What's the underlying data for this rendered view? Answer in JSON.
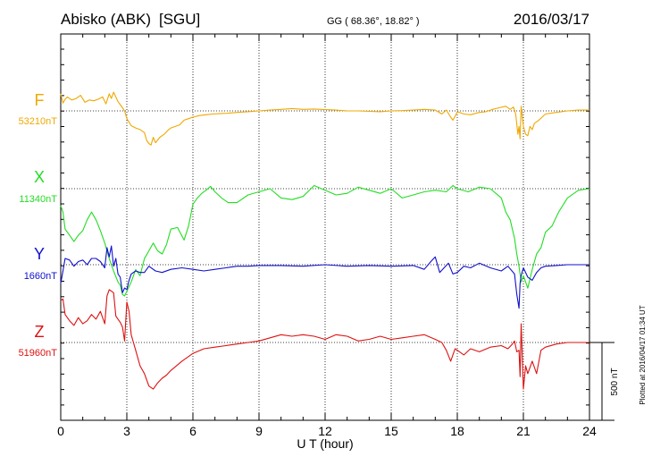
{
  "header": {
    "station": "Abisko (ABK)",
    "institute": "[SGU]",
    "coords": "GG ( 68.36°,  18.82° )",
    "date": "2016/03/17"
  },
  "x_axis_title": "U T (hour)",
  "scale_label": "500 nT",
  "plotted_note": "Plotted at 2016/04/17 01:34 UT",
  "chart_data": {
    "type": "line",
    "title": "Abisko (ABK)  [SGU]",
    "xlabel": "U T (hour)",
    "ylabel": "",
    "xlim": [
      0,
      24
    ],
    "xticks": [
      0,
      3,
      6,
      9,
      12,
      15,
      18,
      21,
      24
    ],
    "grid": true,
    "scale_bar_nT": 500,
    "series": [
      {
        "name": "F",
        "baseline": "53210nT",
        "color": "#f0a800",
        "x": [
          0,
          0.1,
          0.2,
          0.3,
          0.5,
          0.7,
          0.9,
          1.1,
          1.3,
          1.5,
          1.7,
          1.9,
          2.05,
          2.2,
          2.3,
          2.4,
          2.5,
          2.6,
          2.7,
          2.8,
          2.9,
          3.0,
          3.2,
          3.4,
          3.6,
          3.8,
          3.9,
          4.0,
          4.1,
          4.2,
          4.3,
          4.5,
          4.7,
          4.9,
          5.0,
          5.2,
          5.4,
          5.6,
          5.8,
          6.0,
          6.3,
          6.6,
          6.9,
          7.2,
          7.6,
          8.0,
          8.5,
          9.0,
          9.5,
          10.0,
          10.5,
          11.0,
          11.5,
          12.0,
          12.5,
          13.0,
          13.5,
          14.0,
          14.5,
          15.0,
          15.5,
          16.0,
          16.5,
          17.0,
          17.3,
          17.5,
          17.7,
          17.8,
          17.9,
          18.0,
          18.3,
          18.6,
          19.0,
          19.3,
          19.6,
          19.9,
          20.2,
          20.4,
          20.55,
          20.65,
          20.75,
          20.8,
          20.85,
          20.9,
          21.0,
          21.1,
          21.2,
          21.3,
          21.4,
          21.5,
          21.7,
          22.0,
          22.5,
          23.0,
          23.5,
          24.0
        ],
        "values": [
          110,
          50,
          75,
          90,
          70,
          80,
          100,
          55,
          70,
          65,
          75,
          90,
          45,
          110,
          80,
          120,
          90,
          60,
          40,
          20,
          0,
          -50,
          -95,
          -110,
          -120,
          -140,
          -190,
          -210,
          -220,
          -170,
          -205,
          -170,
          -150,
          -120,
          -110,
          -100,
          -90,
          -60,
          -50,
          -40,
          -30,
          -25,
          -20,
          -18,
          -15,
          -10,
          -5,
          0,
          5,
          10,
          15,
          10,
          12,
          8,
          5,
          0,
          0,
          -3,
          -5,
          0,
          2,
          5,
          10,
          5,
          -20,
          5,
          -40,
          -60,
          -35,
          -5,
          -20,
          -25,
          -10,
          -5,
          10,
          20,
          30,
          10,
          25,
          -20,
          -150,
          -100,
          -180,
          30,
          -100,
          -150,
          -160,
          -100,
          -120,
          -80,
          -60,
          -20,
          -10,
          0,
          5,
          5
        ]
      },
      {
        "name": "X",
        "baseline": "11340nT",
        "color": "#22dd22",
        "x": [
          0,
          0.1,
          0.2,
          0.4,
          0.6,
          0.8,
          1.0,
          1.2,
          1.4,
          1.6,
          1.8,
          2.0,
          2.2,
          2.4,
          2.6,
          2.7,
          2.8,
          2.9,
          3.0,
          3.2,
          3.4,
          3.6,
          3.8,
          4.0,
          4.2,
          4.4,
          4.6,
          4.8,
          5.0,
          5.3,
          5.6,
          5.8,
          6.0,
          6.2,
          6.4,
          6.6,
          6.8,
          7.0,
          7.3,
          7.6,
          8.0,
          8.5,
          9.0,
          9.5,
          10.0,
          10.5,
          11.0,
          11.5,
          12.0,
          12.5,
          13.0,
          13.5,
          14.0,
          14.5,
          15.0,
          15.5,
          16.0,
          16.5,
          17.0,
          17.5,
          17.8,
          18.0,
          18.5,
          19.0,
          19.5,
          20.0,
          20.2,
          20.4,
          20.6,
          20.7,
          20.8,
          20.9,
          21.0,
          21.2,
          21.4,
          21.6,
          21.8,
          22.0,
          22.3,
          22.6,
          23.0,
          23.5,
          24.0
        ],
        "values": [
          -110,
          -150,
          -260,
          -300,
          -340,
          -300,
          -270,
          -200,
          -150,
          -200,
          -270,
          -350,
          -450,
          -530,
          -600,
          -620,
          -680,
          -690,
          -660,
          -600,
          -520,
          -560,
          -450,
          -400,
          -350,
          -400,
          -420,
          -360,
          -260,
          -250,
          -330,
          -240,
          -100,
          -60,
          -30,
          -10,
          15,
          -20,
          -60,
          -90,
          -90,
          -40,
          -20,
          0,
          -60,
          -70,
          -50,
          20,
          -10,
          -40,
          -30,
          10,
          -10,
          -30,
          0,
          -60,
          -40,
          -20,
          -10,
          -20,
          20,
          0,
          -20,
          10,
          0,
          -60,
          -150,
          -200,
          -320,
          -420,
          -500,
          -600,
          -560,
          -640,
          -520,
          -420,
          -380,
          -280,
          -240,
          -150,
          -60,
          -10,
          0
        ]
      },
      {
        "name": "Y",
        "baseline": "1660nT",
        "color": "#1010cc",
        "x": [
          0,
          0.1,
          0.2,
          0.4,
          0.6,
          0.8,
          1.0,
          1.2,
          1.4,
          1.6,
          1.8,
          2.0,
          2.1,
          2.2,
          2.3,
          2.4,
          2.5,
          2.6,
          2.7,
          2.8,
          2.9,
          3.0,
          3.1,
          3.2,
          3.4,
          3.6,
          3.8,
          4.0,
          4.3,
          4.6,
          5.0,
          5.5,
          6.0,
          6.5,
          7.0,
          7.5,
          8.0,
          8.5,
          9.0,
          10.0,
          11.0,
          12.0,
          13.0,
          14.0,
          15.0,
          16.0,
          16.5,
          16.8,
          17.0,
          17.2,
          17.4,
          17.6,
          17.8,
          18.0,
          18.3,
          18.6,
          19.0,
          19.5,
          20.0,
          20.3,
          20.6,
          20.7,
          20.8,
          20.85,
          20.9,
          21.0,
          21.2,
          21.4,
          21.6,
          21.8,
          22.0,
          22.5,
          23.0,
          23.5,
          24.0
        ],
        "values": [
          -120,
          -40,
          40,
          30,
          -10,
          20,
          30,
          0,
          40,
          40,
          20,
          -20,
          110,
          50,
          120,
          -10,
          40,
          -60,
          -80,
          -180,
          -150,
          -160,
          -100,
          -60,
          -40,
          -50,
          -50,
          -10,
          -40,
          -50,
          -30,
          -20,
          -30,
          -40,
          -30,
          -20,
          -10,
          -10,
          -5,
          -5,
          -10,
          0,
          -10,
          -5,
          -10,
          -5,
          -30,
          20,
          50,
          -50,
          -20,
          10,
          -60,
          -50,
          -10,
          -20,
          10,
          -20,
          -40,
          -10,
          -60,
          -190,
          -280,
          -120,
          -70,
          -20,
          -80,
          -100,
          -50,
          -20,
          -10,
          -5,
          0,
          0,
          0
        ]
      },
      {
        "name": "Z",
        "baseline": "51960nT",
        "color": "#dd1111",
        "x": [
          0,
          0.1,
          0.2,
          0.4,
          0.6,
          0.8,
          1.0,
          1.2,
          1.4,
          1.6,
          1.8,
          2.0,
          2.1,
          2.2,
          2.3,
          2.4,
          2.5,
          2.6,
          2.7,
          2.8,
          2.9,
          3.0,
          3.1,
          3.2,
          3.4,
          3.6,
          3.8,
          4.0,
          4.2,
          4.4,
          4.6,
          4.8,
          5.0,
          5.5,
          6.0,
          6.5,
          7.0,
          7.5,
          8.0,
          8.5,
          9.0,
          9.5,
          10.0,
          10.5,
          11.0,
          11.5,
          12.0,
          12.5,
          13.0,
          13.5,
          14.0,
          14.5,
          15.0,
          15.5,
          16.0,
          16.5,
          17.0,
          17.3,
          17.5,
          17.7,
          17.9,
          18.0,
          18.3,
          18.6,
          19.0,
          19.5,
          20.0,
          20.3,
          20.5,
          20.6,
          20.7,
          20.8,
          20.85,
          20.9,
          21.0,
          21.1,
          21.2,
          21.4,
          21.6,
          21.8,
          22.0,
          22.5,
          23.0,
          23.5,
          24.0
        ],
        "values": [
          270,
          280,
          180,
          140,
          110,
          160,
          120,
          140,
          180,
          150,
          200,
          120,
          300,
          340,
          330,
          320,
          170,
          150,
          130,
          100,
          10,
          260,
          200,
          50,
          -50,
          -150,
          -200,
          -280,
          -300,
          -260,
          -230,
          -210,
          -180,
          -120,
          -70,
          -40,
          -30,
          -20,
          -10,
          0,
          10,
          30,
          50,
          40,
          50,
          40,
          20,
          50,
          40,
          10,
          20,
          40,
          20,
          30,
          40,
          50,
          20,
          0,
          -50,
          -120,
          -40,
          -50,
          -80,
          -40,
          -60,
          -30,
          -20,
          -40,
          -10,
          10,
          -60,
          -50,
          -220,
          120,
          -300,
          -150,
          -200,
          -120,
          -200,
          -50,
          -30,
          -10,
          0,
          0,
          0
        ]
      }
    ]
  }
}
